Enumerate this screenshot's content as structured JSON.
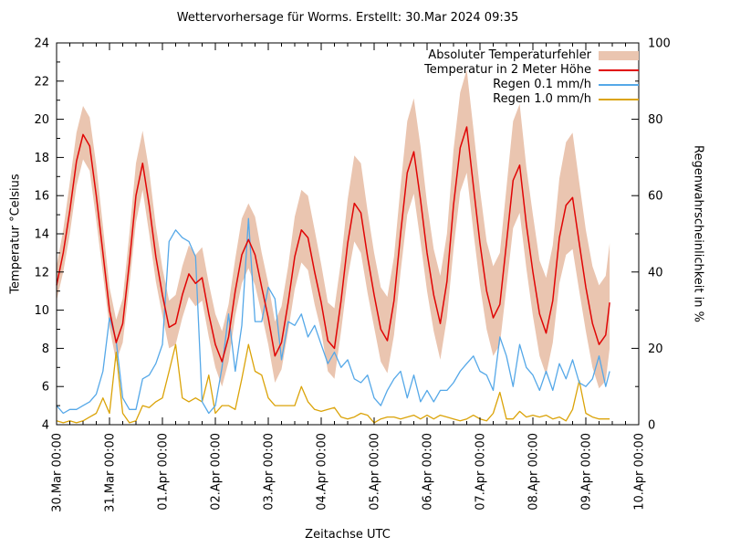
{
  "title": "Wettervorhersage für Worms. Erstellt: 30.Mar 2024 09:35",
  "axes": {
    "x_label": "Zeitachse UTC",
    "y_left_label": "Temperatur °Celsius",
    "y_right_label": "Regenwahrscheinlichkeit in %",
    "x_tick_labels": [
      "30.Mar 00:00",
      "31.Mar 00:00",
      "01.Apr 00:00",
      "02.Apr 00:00",
      "03.Apr 00:00",
      "04.Apr 00:00",
      "05.Apr 00:00",
      "06.Apr 00:00",
      "07.Apr 00:00",
      "08.Apr 00:00",
      "09.Apr 00:00",
      "10.Apr 00:00"
    ],
    "y_left_ticks": [
      4,
      6,
      8,
      10,
      12,
      14,
      16,
      18,
      20,
      22,
      24
    ],
    "y_right_ticks": [
      0,
      20,
      40,
      60,
      80,
      100
    ]
  },
  "legend": [
    {
      "label": "Absoluter Temperaturfehler"
    },
    {
      "label": "Temperatur in 2 Meter Höhe"
    },
    {
      "label": "Regen 0.1 mm/h"
    },
    {
      "label": "Regen 1.0 mm/h"
    }
  ],
  "colors": {
    "error_band": "#eac5b0",
    "temperature": "#e00505",
    "rain_01": "#55a8e8",
    "rain_10": "#dba308",
    "axis": "#000000"
  },
  "chart_data": {
    "type": "line",
    "title": "Wettervorhersage für Worms. Erstellt: 30.Mar 2024 09:35",
    "xlabel": "Zeitachse UTC",
    "ylabel_left": "Temperatur °Celsius",
    "ylabel_right": "Regenwahrscheinlichkeit in %",
    "x_unit": "days since 30.Mar 2024 00:00 UTC",
    "x_range_days": [
      0,
      11
    ],
    "y_left_range": [
      4,
      24
    ],
    "y_right_range": [
      0,
      100
    ],
    "grid": false,
    "legend_position": "top-right",
    "x_days": [
      0,
      0.125,
      0.25,
      0.375,
      0.5,
      0.625,
      0.75,
      0.875,
      1,
      1.125,
      1.25,
      1.375,
      1.5,
      1.625,
      1.75,
      1.875,
      2,
      2.125,
      2.25,
      2.375,
      2.5,
      2.625,
      2.75,
      2.875,
      3,
      3.125,
      3.25,
      3.375,
      3.5,
      3.625,
      3.75,
      3.875,
      4,
      4.125,
      4.25,
      4.375,
      4.5,
      4.625,
      4.75,
      4.875,
      5,
      5.125,
      5.25,
      5.375,
      5.5,
      5.625,
      5.75,
      5.875,
      6,
      6.125,
      6.25,
      6.375,
      6.5,
      6.625,
      6.75,
      6.875,
      7,
      7.125,
      7.25,
      7.375,
      7.5,
      7.625,
      7.75,
      7.875,
      8,
      8.125,
      8.25,
      8.375,
      8.5,
      8.625,
      8.75,
      8.875,
      9,
      9.125,
      9.25,
      9.375,
      9.5,
      9.625,
      9.75,
      9.875,
      10,
      10.125,
      10.25,
      10.375,
      10.45
    ],
    "series": [
      {
        "name": "Absoluter Temperaturfehler",
        "type": "band",
        "axis": "left",
        "color": "#eac5b0",
        "lower": [
          10.5,
          12.0,
          14.0,
          16.5,
          17.9,
          17.3,
          14.7,
          11.9,
          9.1,
          7.3,
          8.3,
          11.3,
          14.6,
          16.3,
          14.0,
          11.5,
          9.7,
          8.0,
          8.2,
          9.6,
          10.7,
          10.2,
          10.5,
          8.6,
          7.0,
          6.0,
          7.3,
          9.7,
          11.4,
          12.2,
          11.3,
          9.8,
          8.2,
          6.2,
          6.9,
          8.9,
          11.1,
          12.5,
          12.1,
          10.3,
          8.9,
          6.8,
          6.4,
          8.9,
          11.7,
          13.6,
          13.0,
          10.9,
          9.1,
          7.3,
          6.7,
          8.7,
          12.0,
          15.0,
          16.1,
          13.6,
          11.0,
          8.9,
          7.4,
          9.6,
          13.2,
          16.2,
          17.2,
          14.1,
          11.3,
          9.0,
          7.6,
          8.2,
          11.2,
          14.3,
          15.1,
          12.2,
          9.7,
          7.6,
          6.6,
          8.3,
          11.4,
          12.9,
          13.2,
          11.0,
          8.9,
          7.0,
          5.9,
          6.3,
          8.0
        ],
        "upper": [
          12.3,
          14.2,
          16.7,
          19.3,
          20.7,
          20.1,
          17.6,
          14.4,
          11.2,
          9.5,
          10.6,
          14.0,
          17.7,
          19.4,
          17.3,
          14.4,
          12.2,
          10.5,
          10.8,
          12.3,
          13.4,
          12.9,
          13.3,
          11.4,
          9.8,
          8.9,
          10.3,
          12.7,
          14.8,
          15.6,
          14.9,
          13.0,
          11.4,
          9.4,
          10.2,
          12.3,
          14.9,
          16.3,
          16.0,
          14.2,
          12.4,
          10.4,
          10.1,
          12.6,
          15.8,
          18.1,
          17.7,
          15.2,
          13.0,
          11.2,
          10.7,
          12.8,
          16.5,
          19.9,
          21.1,
          18.6,
          15.6,
          13.2,
          11.8,
          14.0,
          18.4,
          21.4,
          22.6,
          19.5,
          16.3,
          13.6,
          12.3,
          13.0,
          16.4,
          19.9,
          20.8,
          17.5,
          15.0,
          12.6,
          11.7,
          13.4,
          16.9,
          18.8,
          19.3,
          16.7,
          14.2,
          12.3,
          11.3,
          11.8,
          13.5
        ]
      },
      {
        "name": "Temperatur in 2 Meter Höhe",
        "type": "line",
        "axis": "left",
        "color": "#e00505",
        "values": [
          11.3,
          13.0,
          15.2,
          17.8,
          19.2,
          18.6,
          16.0,
          13.0,
          10.0,
          8.3,
          9.3,
          12.5,
          16.0,
          17.7,
          15.5,
          12.8,
          10.8,
          9.1,
          9.3,
          10.8,
          11.9,
          11.4,
          11.7,
          9.8,
          8.2,
          7.3,
          8.6,
          11.0,
          12.9,
          13.7,
          12.9,
          11.2,
          9.6,
          7.6,
          8.3,
          10.4,
          12.8,
          14.2,
          13.8,
          12.0,
          10.4,
          8.4,
          8.0,
          10.5,
          13.5,
          15.6,
          15.1,
          12.8,
          10.8,
          9.0,
          8.4,
          10.5,
          14.0,
          17.2,
          18.3,
          15.8,
          13.0,
          10.8,
          9.3,
          11.5,
          15.5,
          18.5,
          19.6,
          16.5,
          13.5,
          11.0,
          9.6,
          10.3,
          13.5,
          16.8,
          17.6,
          14.5,
          12.0,
          9.8,
          8.8,
          10.5,
          13.8,
          15.5,
          15.9,
          13.5,
          11.2,
          9.3,
          8.2,
          8.7,
          10.4
        ]
      },
      {
        "name": "Regen 0.1 mm/h",
        "type": "line",
        "axis": "right",
        "color": "#55a8e8",
        "values": [
          5,
          3,
          4,
          4,
          5,
          6,
          8,
          14,
          28,
          22,
          7,
          4,
          4,
          12,
          13,
          16,
          21,
          48,
          51,
          49,
          48,
          44,
          6,
          3,
          5,
          15,
          29,
          14,
          26,
          54,
          27,
          27,
          36,
          33,
          17,
          27,
          26,
          29,
          23,
          26,
          21,
          16,
          19,
          15,
          17,
          12,
          11,
          13,
          7,
          5,
          9,
          12,
          14,
          7,
          13,
          6,
          9,
          6,
          9,
          9,
          11,
          14,
          16,
          18,
          14,
          13,
          9,
          23,
          18,
          10,
          21,
          15,
          13,
          9,
          14,
          9,
          16,
          12,
          17,
          11,
          10,
          12,
          18,
          10,
          14
        ]
      },
      {
        "name": "Regen 1.0 mm/h",
        "type": "line",
        "axis": "right",
        "color": "#dba308",
        "values": [
          1,
          0.5,
          1,
          0.5,
          1,
          2,
          3,
          7,
          3,
          19,
          3,
          0.5,
          1,
          5,
          4.5,
          6,
          7,
          14,
          21,
          7,
          6,
          7,
          6,
          13,
          3,
          5,
          5,
          4,
          12,
          21,
          14,
          13,
          7,
          5,
          5,
          5,
          5,
          10,
          6,
          4,
          3.5,
          4,
          4.5,
          2,
          1.5,
          2,
          3,
          2.5,
          0.5,
          1.5,
          2,
          2,
          1.5,
          2,
          2.5,
          1.5,
          2.5,
          1.5,
          2.5,
          2,
          1.5,
          1,
          1.5,
          2.5,
          1.5,
          1,
          3,
          8.5,
          1.5,
          1.5,
          3.5,
          2,
          2.5,
          2,
          2.5,
          1.5,
          2,
          1,
          4,
          11.5,
          3,
          2,
          1.5,
          1.5,
          1.5
        ]
      }
    ]
  }
}
